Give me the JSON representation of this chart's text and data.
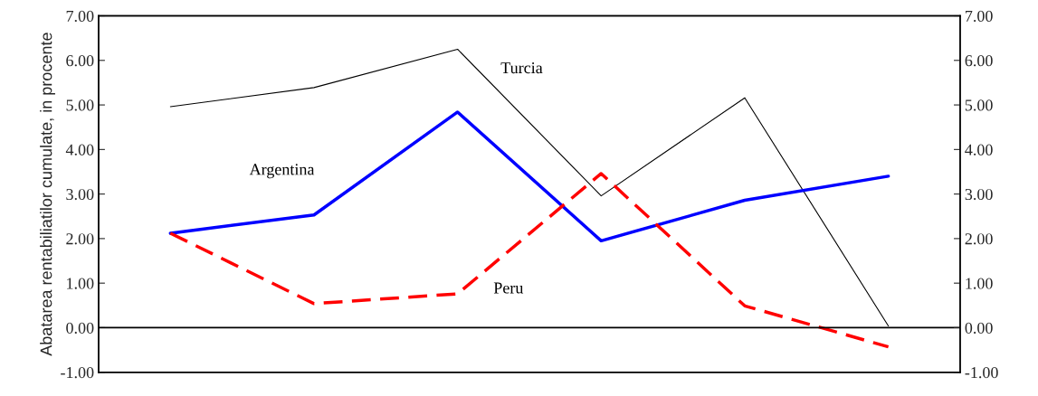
{
  "chart_data": {
    "type": "line",
    "ylabel": "Abatarea rentabiliatilor cumulate, in procente",
    "categories": [
      null,
      null,
      null,
      null,
      null,
      null
    ],
    "series": [
      {
        "name": "Turcia",
        "color": "#000000",
        "line_style": "solid",
        "values": [
          4.96,
          5.39,
          6.25,
          2.96,
          5.16,
          0.04
        ]
      },
      {
        "name": "Argentina",
        "color": "#0000ff",
        "line_style": "solid",
        "values": [
          2.12,
          2.53,
          4.84,
          1.95,
          2.86,
          3.4
        ]
      },
      {
        "name": "Peru",
        "color": "#ff0000",
        "line_style": "dashed",
        "values": [
          2.12,
          0.54,
          0.76,
          3.46,
          0.49,
          -0.43
        ]
      }
    ],
    "ylim": [
      -1,
      7
    ],
    "yticks": [
      {
        "value": -1,
        "label": "-1.00"
      },
      {
        "value": 0,
        "label": "0.00"
      },
      {
        "value": 1,
        "label": "1.00"
      },
      {
        "value": 2,
        "label": "2.00"
      },
      {
        "value": 3,
        "label": "3.00"
      },
      {
        "value": 4,
        "label": "4.00"
      },
      {
        "value": 5,
        "label": "5.00"
      },
      {
        "value": 6,
        "label": "6.00"
      },
      {
        "value": 7,
        "label": "7.00"
      }
    ],
    "y2lim": [
      -1,
      7
    ],
    "y2ticks": [
      {
        "value": -1,
        "label": "-1.00"
      },
      {
        "value": 0,
        "label": "0.00"
      },
      {
        "value": 1,
        "label": "1.00"
      },
      {
        "value": 2,
        "label": "2.00"
      },
      {
        "value": 3,
        "label": "3.00"
      },
      {
        "value": 4,
        "label": "4.00"
      },
      {
        "value": 5,
        "label": "5.00"
      },
      {
        "value": 6,
        "label": "6.00"
      },
      {
        "value": 7,
        "label": "7.00"
      }
    ],
    "ref_lines": [
      {
        "axis": "y",
        "value": 0,
        "color": "#000000"
      }
    ],
    "grid": false,
    "legend": false,
    "marker": "none"
  }
}
